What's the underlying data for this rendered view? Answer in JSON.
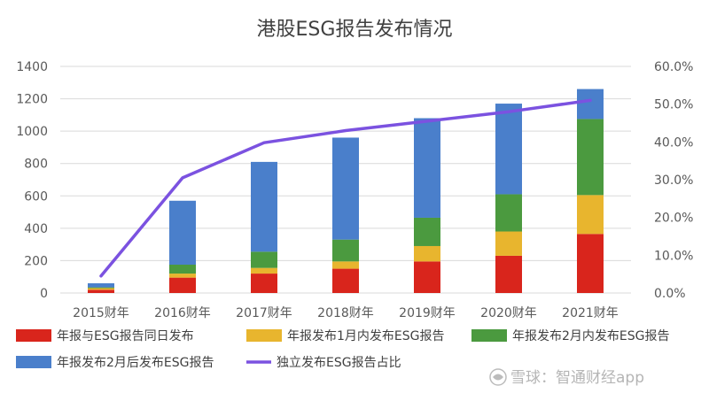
{
  "chart_data": {
    "type": "bar",
    "stacked": true,
    "title": "港股ESG报告发布情况",
    "categories": [
      "2015财年",
      "2016财年",
      "2017财年",
      "2018财年",
      "2019财年",
      "2020财年",
      "2021财年"
    ],
    "series": [
      {
        "name": "年报与ESG报告同日发布",
        "type": "bar",
        "axis": "left",
        "color": "#d9251c",
        "values": [
          20,
          95,
          120,
          150,
          195,
          230,
          365
        ]
      },
      {
        "name": "年报发布1月内发布ESG报告",
        "type": "bar",
        "axis": "left",
        "color": "#e8b52e",
        "values": [
          10,
          25,
          35,
          45,
          95,
          150,
          240
        ]
      },
      {
        "name": "年报发布2月内发布ESG报告",
        "type": "bar",
        "axis": "left",
        "color": "#4b9a3f",
        "values": [
          5,
          55,
          100,
          135,
          175,
          230,
          470
        ]
      },
      {
        "name": "年报发布2月后发布ESG报告",
        "type": "bar",
        "axis": "left",
        "color": "#4a7fcb",
        "values": [
          25,
          395,
          555,
          630,
          615,
          560,
          185
        ]
      },
      {
        "name": "独立发布ESG报告占比",
        "type": "line",
        "axis": "right",
        "color": "#7b52e0",
        "values": [
          4.5,
          30.5,
          39.8,
          43.0,
          45.5,
          48.0,
          51.0
        ]
      }
    ],
    "left_axis": {
      "min": 0,
      "max": 1400,
      "ticks": [
        "0",
        "200",
        "400",
        "600",
        "800",
        "1000",
        "1200",
        "1400"
      ]
    },
    "right_axis": {
      "min": 0,
      "max": 60,
      "ticks": [
        "0.0%",
        "10.0%",
        "20.0%",
        "30.0%",
        "40.0%",
        "50.0%",
        "60.0%"
      ]
    },
    "grid": true,
    "legend_position": "bottom"
  },
  "watermark": {
    "text": "雪球：智通财经app"
  }
}
